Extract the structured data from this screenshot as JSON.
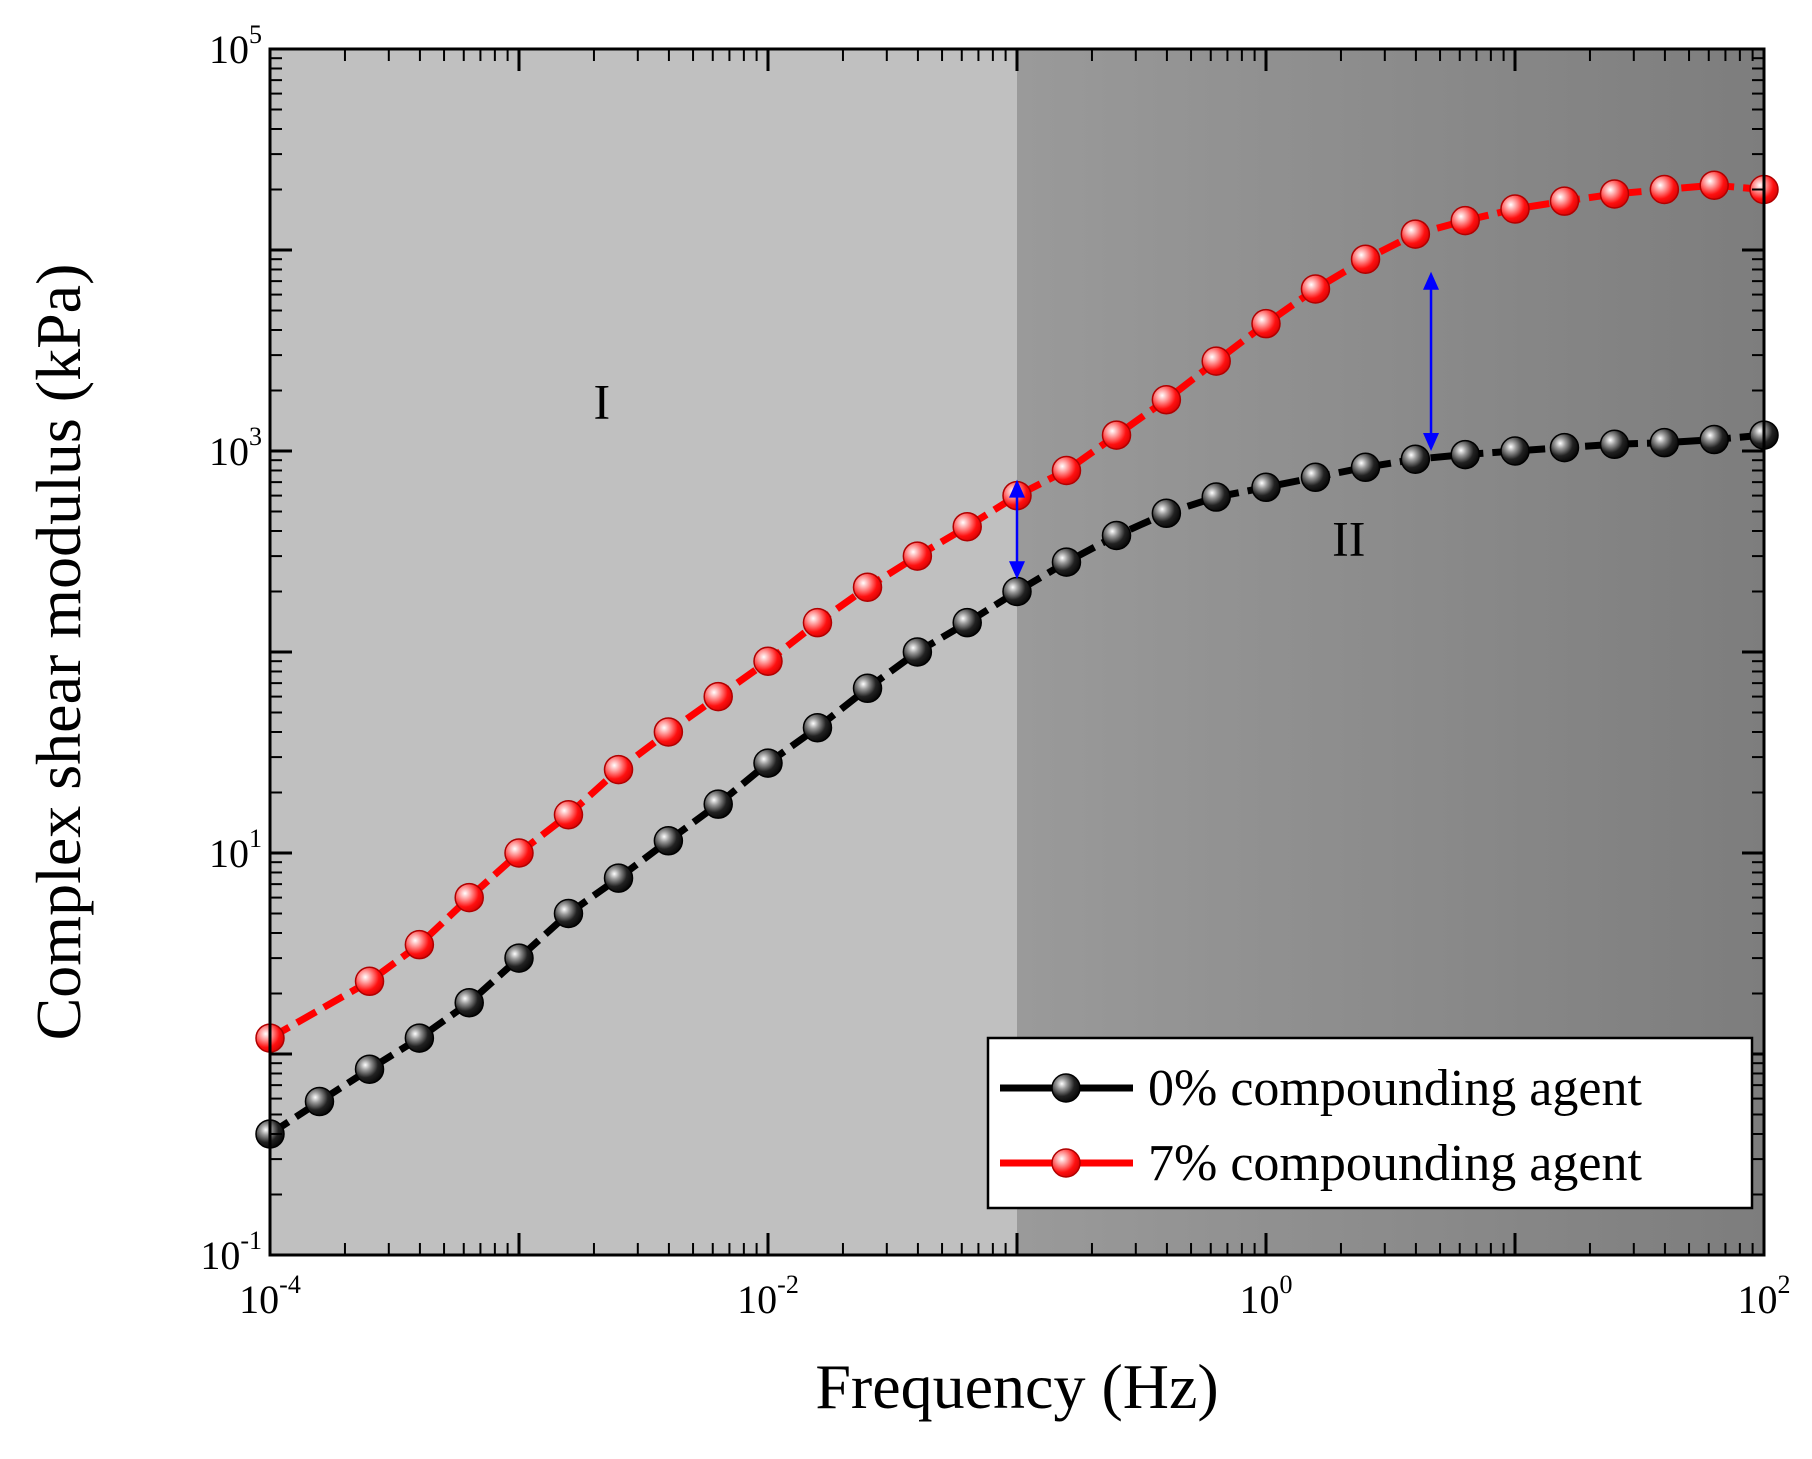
{
  "chart_data": {
    "type": "line",
    "xscale": "log",
    "yscale": "log",
    "xlabel": "Frequency (Hz)",
    "ylabel": "Complex shear modulus (kPa)",
    "xlim": [
      0.0001,
      100
    ],
    "ylim": [
      0.1,
      100000
    ],
    "x_ticks": [
      {
        "base": "10",
        "exp": "-4",
        "value": 0.0001
      },
      {
        "base": "10",
        "exp": "-2",
        "value": 0.01
      },
      {
        "base": "10",
        "exp": "0",
        "value": 1
      },
      {
        "base": "10",
        "exp": "2",
        "value": 100
      }
    ],
    "y_ticks": [
      {
        "base": "10",
        "exp": "-1",
        "value": 0.1
      },
      {
        "base": "10",
        "exp": "1",
        "value": 10
      },
      {
        "base": "10",
        "exp": "3",
        "value": 1000
      },
      {
        "base": "10",
        "exp": "5",
        "value": 100000
      }
    ],
    "regions": [
      {
        "label": "I",
        "x_from": 0.0001,
        "x_to": 0.1,
        "color": "#c0c0c0"
      },
      {
        "label": "II",
        "x_from": 0.1,
        "x_to": 100,
        "gradient": [
          "#9a9a9a",
          "#7d7d7d"
        ]
      }
    ],
    "region_label_positions": [
      {
        "label": "I",
        "x": 0.00215,
        "y": 1450
      },
      {
        "label": "II",
        "x": 2.15,
        "y": 302
      }
    ],
    "annotations": [
      {
        "type": "double-arrow",
        "x": 0.1,
        "y_from": 230,
        "y_to": 720,
        "color": "#0000ff"
      },
      {
        "type": "double-arrow",
        "x": 4.6,
        "y_from": 1000,
        "y_to": 7800,
        "color": "#0000ff"
      }
    ],
    "legend": {
      "position": "bottom-right"
    },
    "series": [
      {
        "name": "0% compounding agent",
        "color": "#000000",
        "x": [
          0.0001,
          0.000158,
          0.000251,
          0.000398,
          0.000631,
          0.001,
          0.00158,
          0.00251,
          0.00398,
          0.00631,
          0.01,
          0.0158,
          0.0251,
          0.0398,
          0.0631,
          0.1,
          0.158,
          0.251,
          0.398,
          0.631,
          1,
          1.58,
          2.51,
          3.98,
          6.31,
          10,
          15.8,
          25.1,
          39.8,
          63.1,
          100
        ],
        "values": [
          0.4,
          0.58,
          0.84,
          1.2,
          1.8,
          3.0,
          5.0,
          7.5,
          11.5,
          17.5,
          28,
          42,
          66,
          100,
          140,
          200,
          280,
          380,
          490,
          590,
          660,
          740,
          830,
          910,
          960,
          1000,
          1040,
          1080,
          1100,
          1140,
          1200
        ]
      },
      {
        "name": "7% compounding agent",
        "color": "#ff0000",
        "x": [
          0.0001,
          0.000251,
          0.000398,
          0.000631,
          0.001,
          0.00158,
          0.00251,
          0.00398,
          0.00631,
          0.01,
          0.0158,
          0.0251,
          0.0398,
          0.0631,
          0.1,
          0.158,
          0.251,
          0.398,
          0.631,
          1,
          1.58,
          2.51,
          3.98,
          6.31,
          10,
          15.8,
          25.1,
          39.8,
          63.1,
          100
        ],
        "values": [
          1.2,
          2.3,
          3.5,
          6.0,
          10,
          15.5,
          26,
          40,
          60,
          90,
          140,
          210,
          300,
          420,
          600,
          800,
          1200,
          1800,
          2800,
          4300,
          6400,
          9000,
          12000,
          14000,
          16000,
          17500,
          19000,
          20000,
          21000,
          20000
        ]
      }
    ]
  }
}
